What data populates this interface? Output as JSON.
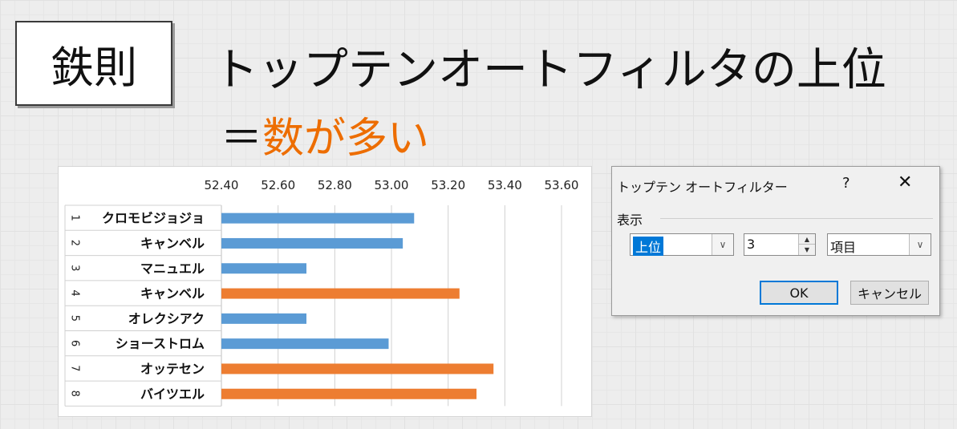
{
  "badge": "鉄則",
  "title": "トップテンオートフィルタの上位",
  "subtitle": {
    "eq": "＝",
    "highlight": "数が多い"
  },
  "colors": {
    "blue": "#5b9bd5",
    "orange": "#ed7d31",
    "accent": "#ed6d00"
  },
  "chart_data": {
    "type": "bar",
    "orientation": "horizontal",
    "title": "",
    "xlim": [
      52.4,
      53.6
    ],
    "xticks": [
      "52.40",
      "52.60",
      "52.80",
      "53.00",
      "53.20",
      "53.40",
      "53.60"
    ],
    "categories": [
      {
        "num": "1",
        "name": "クロモビジョジョ"
      },
      {
        "num": "2",
        "name": "キャンベル"
      },
      {
        "num": "3",
        "name": "マニュエル"
      },
      {
        "num": "4",
        "name": "キャンベル"
      },
      {
        "num": "5",
        "name": "オレクシアク"
      },
      {
        "num": "6",
        "name": "ショーストロム"
      },
      {
        "num": "7",
        "name": "オッテセン"
      },
      {
        "num": "8",
        "name": "バイツエル"
      }
    ],
    "values": [
      53.08,
      53.04,
      52.7,
      53.24,
      52.7,
      52.99,
      53.36,
      53.3
    ],
    "highlight": [
      false,
      false,
      false,
      true,
      false,
      false,
      true,
      true
    ]
  },
  "dialog": {
    "title": "トップテン オートフィルター",
    "help": "?",
    "close": "✕",
    "group_label": "表示",
    "combo1": "上位",
    "count": "3",
    "combo2": "項目",
    "ok": "OK",
    "cancel": "キャンセル"
  }
}
